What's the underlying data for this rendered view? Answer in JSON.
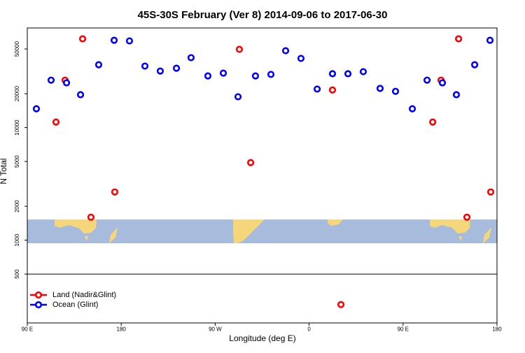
{
  "chart_data": {
    "type": "scatter",
    "title": "45S-30S February (Ver 8)   2014-09-06 to 2017-06-30",
    "x_label": "Longitude (deg E)",
    "y_label": "N Total",
    "log_y": true,
    "legend_position": "lower left",
    "xlim": [
      90,
      540
    ],
    "ylim": [
      184,
      76800
    ],
    "xticks": [
      {
        "value": 90,
        "label": "90 E"
      },
      {
        "value": 180,
        "label": "180"
      },
      {
        "value": 270,
        "label": "90 W"
      },
      {
        "value": 360,
        "label": "0"
      },
      {
        "value": 450,
        "label": "90 E"
      },
      {
        "value": 540,
        "label": "180"
      }
    ],
    "yticks": [
      500,
      1000,
      2000,
      5000,
      10000,
      20000,
      50000
    ],
    "series": [
      {
        "name": "Land (Nadir&Glint)",
        "color": "#ff0000",
        "x": [
          117.5,
          126.2,
          143,
          151,
          173.8,
          293.2,
          304,
          382.4,
          390.5,
          478.4,
          486.4,
          503.2,
          511.2,
          534
        ],
        "values": [
          11200,
          26400,
          61500,
          1600,
          2680,
          49600,
          4890,
          21600,
          268,
          11200,
          26400,
          61500,
          1600,
          2680
        ]
      },
      {
        "name": "Ocean (Glint)",
        "color": "#0000ff",
        "x": [
          98.7,
          112.8,
          127.6,
          141,
          158.4,
          173.2,
          187.9,
          202.7,
          217.4,
          232.9,
          246.9,
          263,
          277.8,
          291.9,
          308.6,
          323.4,
          337.5,
          352.2,
          367.7,
          382.4,
          397.2,
          411.9,
          428,
          442.8,
          458.9,
          473,
          487.7,
          501.1,
          518.6,
          533.3
        ],
        "values": [
          14700,
          26400,
          25000,
          19600,
          36200,
          59700,
          58900,
          35200,
          31800,
          33700,
          41800,
          28800,
          30500,
          18800,
          28800,
          29700,
          48200,
          41200,
          22000,
          30100,
          30100,
          31400,
          22300,
          21000,
          14700,
          26400,
          25000,
          19600,
          36200,
          59700
        ]
      }
    ]
  }
}
